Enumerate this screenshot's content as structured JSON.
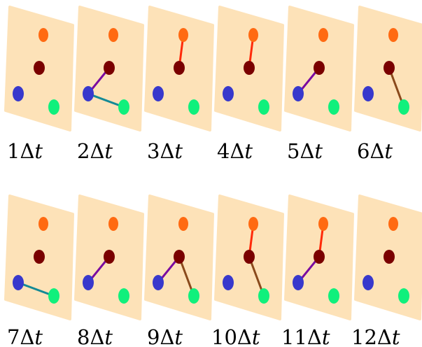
{
  "colors": {
    "panel": "#fde2b8",
    "orange": "#ff6a12",
    "dark_red": "#7a0000",
    "blue": "#3838cc",
    "green": "#10f07c",
    "edge_red": "#ff2a0a",
    "edge_purple": "#7a0aa0",
    "edge_teal": "#148a96",
    "edge_brown": "#8a4a1c"
  },
  "frames": [
    {
      "label_num": "1",
      "label_sym": "Δ",
      "label_var": "t",
      "edges": []
    },
    {
      "label_num": "2",
      "label_sym": "Δ",
      "label_var": "t",
      "edges": [
        {
          "from": "dark_red",
          "to": "blue",
          "color": "edge_purple"
        },
        {
          "from": "blue",
          "to": "green",
          "color": "edge_teal"
        }
      ]
    },
    {
      "label_num": "3",
      "label_sym": "Δ",
      "label_var": "t",
      "edges": [
        {
          "from": "orange",
          "to": "dark_red",
          "color": "edge_red"
        }
      ]
    },
    {
      "label_num": "4",
      "label_sym": "Δ",
      "label_var": "t",
      "edges": [
        {
          "from": "orange",
          "to": "dark_red",
          "color": "edge_red"
        }
      ]
    },
    {
      "label_num": "5",
      "label_sym": "Δ",
      "label_var": "t",
      "edges": [
        {
          "from": "dark_red",
          "to": "blue",
          "color": "edge_purple"
        }
      ]
    },
    {
      "label_num": "6",
      "label_sym": "Δ",
      "label_var": "t",
      "edges": [
        {
          "from": "dark_red",
          "to": "green",
          "color": "edge_brown"
        }
      ]
    },
    {
      "label_num": "7",
      "label_sym": "Δ",
      "label_var": "t",
      "edges": [
        {
          "from": "blue",
          "to": "green",
          "color": "edge_teal"
        }
      ]
    },
    {
      "label_num": "8",
      "label_sym": "Δ",
      "label_var": "t",
      "edges": [
        {
          "from": "dark_red",
          "to": "blue",
          "color": "edge_purple"
        }
      ]
    },
    {
      "label_num": "9",
      "label_sym": "Δ",
      "label_var": "t",
      "edges": [
        {
          "from": "dark_red",
          "to": "blue",
          "color": "edge_purple"
        },
        {
          "from": "dark_red",
          "to": "green",
          "color": "edge_brown"
        }
      ]
    },
    {
      "label_num": "10",
      "label_sym": "Δ",
      "label_var": "t",
      "edges": [
        {
          "from": "orange",
          "to": "dark_red",
          "color": "edge_red"
        },
        {
          "from": "dark_red",
          "to": "green",
          "color": "edge_brown"
        }
      ]
    },
    {
      "label_num": "11",
      "label_sym": "Δ",
      "label_var": "t",
      "edges": [
        {
          "from": "orange",
          "to": "dark_red",
          "color": "edge_red"
        },
        {
          "from": "dark_red",
          "to": "blue",
          "color": "edge_purple"
        }
      ]
    },
    {
      "label_num": "12",
      "label_sym": "Δ",
      "label_var": "t",
      "edges": []
    }
  ]
}
